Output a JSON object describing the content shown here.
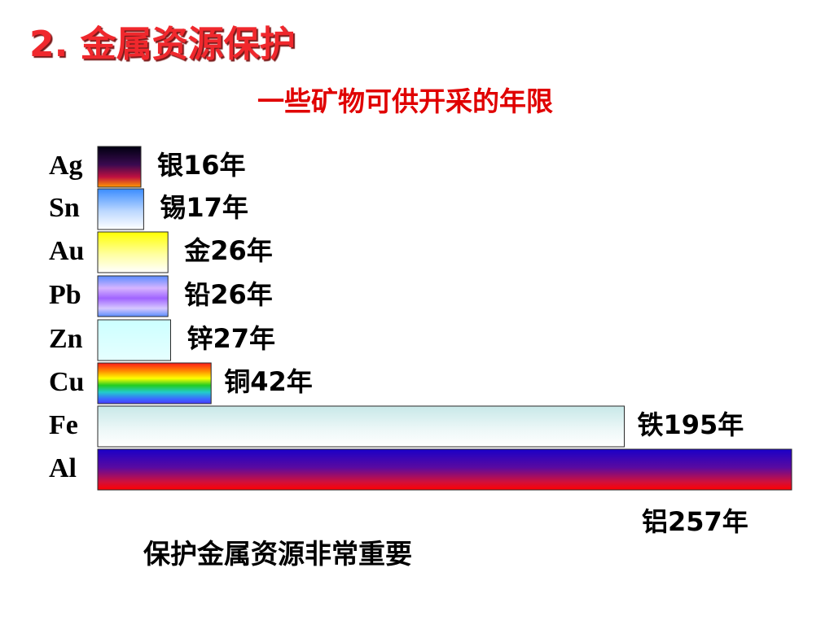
{
  "slide": {
    "title": "2. 金属资源保护",
    "footer": "保护金属资源非常重要"
  },
  "chart_data": {
    "type": "bar",
    "orientation": "horizontal",
    "title": "一些矿物可供开采的年限",
    "xlabel": "",
    "ylabel": "",
    "xlim": [
      0,
      257
    ],
    "grid": false,
    "categories": [
      "Ag",
      "Sn",
      "Au",
      "Pb",
      "Zn",
      "Cu",
      "Fe",
      "Al"
    ],
    "values": [
      16,
      17,
      26,
      26,
      27,
      42,
      195,
      257
    ],
    "data_labels": [
      "银16年",
      "锡17年",
      "金26年",
      "铅26年",
      "锌27年",
      "铜42年",
      "铁195年",
      "铝257年"
    ],
    "bar_fills": [
      "ag-gradient",
      "sn-gradient",
      "au-gradient",
      "pb-gradient",
      "zn-gradient",
      "cu-rainbow",
      "fe-gradient",
      "al-gradient"
    ]
  },
  "colors": {
    "title_red": "#f0282d",
    "chart_title_red": "#e00000"
  }
}
